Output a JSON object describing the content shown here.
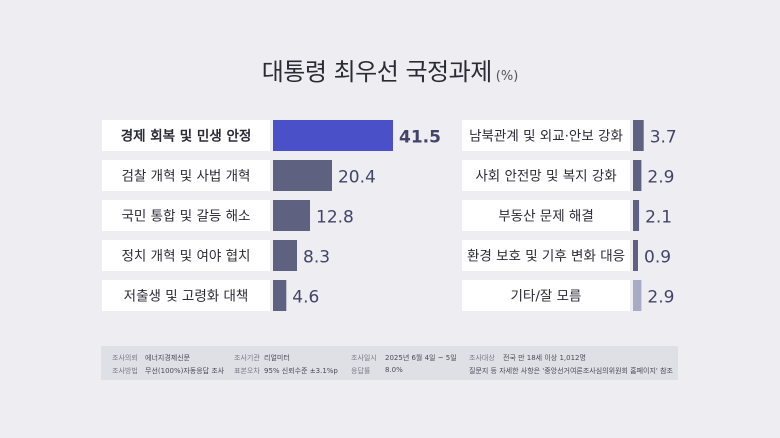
{
  "title": {
    "main": "대통령 최우선 국정과제",
    "unit": "(%)"
  },
  "colors": {
    "highlight_bar": "#4a50c8",
    "bar": "#5f6180",
    "muted_bar": "#a9aac4",
    "highlight_value": "#3d3fa3",
    "value": "#43436a",
    "muted_value": "#9b9cb5"
  },
  "chart_data": {
    "type": "bar",
    "title": "대통령 최우선 국정과제",
    "unit": "(%)",
    "categories": [
      "경제 회복 및 민생 안정",
      "검찰 개혁 및 사법 개혁",
      "국민 통합 및 갈등 해소",
      "정치 개혁 및 여야 협치",
      "저출생 및 고령화 대책",
      "남북관계 및 외교·안보 강화",
      "사회 안전망 및 복지 강화",
      "부동산 문제 해결",
      "환경 보호 및 기후 변화 대응",
      "기타/잘 모름"
    ],
    "values": [
      41.5,
      20.4,
      12.8,
      8.3,
      4.6,
      3.7,
      2.9,
      2.1,
      0.9,
      2.9
    ],
    "value_labels": [
      "41.5",
      "20.4",
      "12.8",
      "8.3",
      "4.6",
      "3.7",
      "2.9",
      "2.1",
      "0.9",
      "2.9"
    ],
    "xlim": [
      0,
      41.5
    ],
    "grid": false,
    "legend": "none"
  },
  "footer": {
    "row1": [
      {
        "key": "조사의뢰",
        "value": "에너지경제신문"
      },
      {
        "key": "조사기관",
        "value": "리얼미터"
      },
      {
        "key": "조사일시",
        "value": "2025년 6월 4일 ~ 5일"
      },
      {
        "key": "조사대상",
        "value": "전국 만 18세 이상 1,012명"
      }
    ],
    "row2": [
      {
        "key": "조사방법",
        "value": "무선(100%)자동응답 조사"
      },
      {
        "key": "표본오차",
        "value": "95% 신뢰수준 ±3.1%p"
      },
      {
        "key": "응답률",
        "value": "8.0%"
      },
      {
        "key": "",
        "value": "질문지 등 자세한 사항은 '중앙선거여론조사심의위원회 홈페이지' 참조"
      }
    ]
  }
}
